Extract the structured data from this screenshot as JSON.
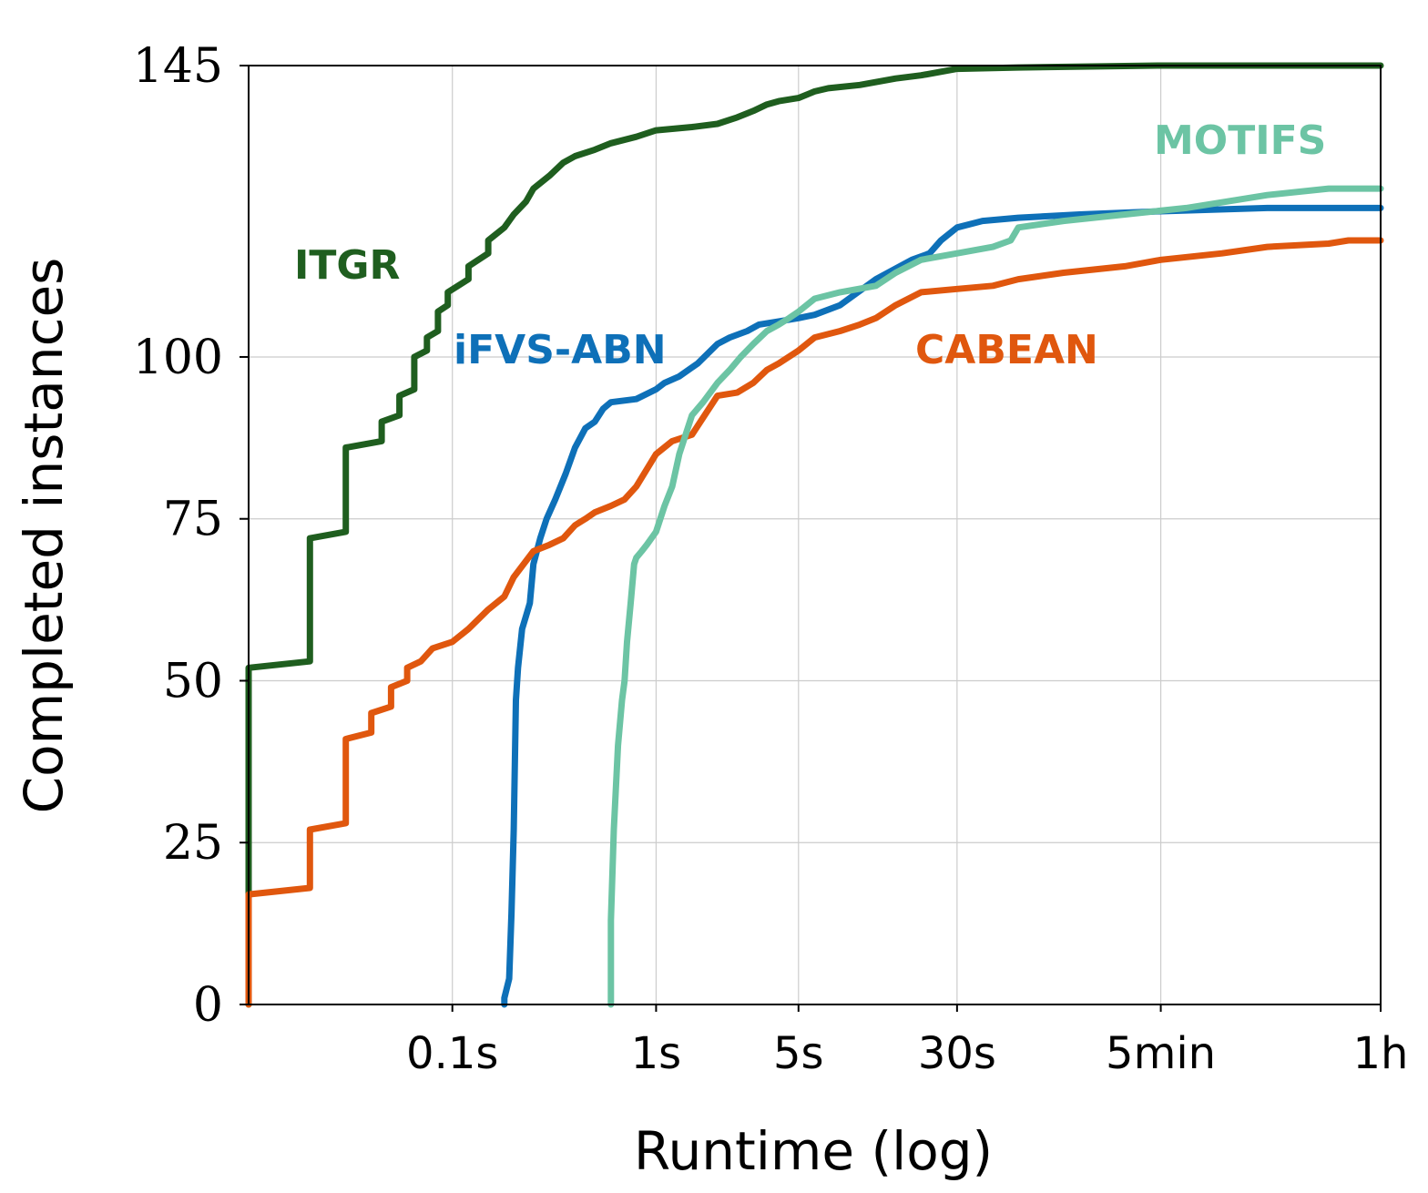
{
  "chart_data": {
    "type": "line",
    "title": "",
    "xlabel": "Runtime (log)",
    "ylabel": "Completed instances",
    "x_scale": "log",
    "xlim_seconds": [
      0.01,
      3600
    ],
    "ylim": [
      0,
      145
    ],
    "y_ticks": [
      0,
      25,
      50,
      75,
      100,
      145
    ],
    "x_ticks": [
      {
        "value": 0.1,
        "label": "0.1s"
      },
      {
        "value": 1,
        "label": "1s"
      },
      {
        "value": 5,
        "label": "5s"
      },
      {
        "value": 30,
        "label": "30s"
      },
      {
        "value": 300,
        "label": "5min"
      },
      {
        "value": 3600,
        "label": "1h"
      }
    ],
    "grid": true,
    "series": [
      {
        "name": "ITGR",
        "color": "#1f5e1f",
        "x": [
          0.01,
          0.01,
          0.02,
          0.02,
          0.03,
          0.03,
          0.045,
          0.045,
          0.055,
          0.055,
          0.065,
          0.065,
          0.075,
          0.075,
          0.085,
          0.085,
          0.095,
          0.095,
          0.12,
          0.12,
          0.15,
          0.15,
          0.18,
          0.2,
          0.23,
          0.25,
          0.3,
          0.35,
          0.4,
          0.5,
          0.6,
          0.8,
          1.0,
          1.5,
          2,
          2.5,
          3,
          3.5,
          4,
          5,
          6,
          7,
          10,
          15,
          20,
          30,
          60,
          300,
          3600
        ],
        "y": [
          0,
          52,
          53,
          72,
          73,
          86,
          87,
          90,
          91,
          94,
          95,
          100,
          101,
          103,
          104,
          107,
          108,
          110,
          112,
          114,
          116,
          118,
          120,
          122,
          124,
          126,
          128,
          130,
          131,
          132,
          133,
          134,
          135,
          135.5,
          136,
          137,
          138,
          139,
          139.5,
          140,
          141,
          141.5,
          142,
          143,
          143.5,
          144.5,
          144.7,
          145,
          145
        ]
      },
      {
        "name": "iFVS-ABN",
        "color": "#0e70b8",
        "x": [
          0.18,
          0.18,
          0.19,
          0.195,
          0.2,
          0.205,
          0.21,
          0.22,
          0.23,
          0.24,
          0.25,
          0.27,
          0.29,
          0.32,
          0.36,
          0.4,
          0.45,
          0.5,
          0.55,
          0.6,
          0.8,
          1.0,
          1.1,
          1.3,
          1.6,
          2.0,
          2.3,
          2.8,
          3.2,
          4,
          5,
          6,
          8,
          12,
          18,
          22,
          25,
          30,
          40,
          60,
          120,
          300,
          1000,
          3600
        ],
        "y": [
          0,
          1,
          4,
          14,
          27,
          47,
          52,
          58,
          60,
          62,
          68,
          72,
          75,
          78,
          82,
          86,
          89,
          90,
          92,
          93,
          93.5,
          95,
          96,
          97,
          99,
          102,
          103,
          104,
          105,
          105.5,
          106,
          106.5,
          108,
          112,
          115,
          116,
          118,
          120,
          121,
          121.5,
          122,
          122.5,
          123,
          123
        ]
      },
      {
        "name": "CABEAN",
        "color": "#e0570e",
        "x": [
          0.01,
          0.01,
          0.02,
          0.02,
          0.03,
          0.03,
          0.04,
          0.04,
          0.05,
          0.05,
          0.06,
          0.06,
          0.07,
          0.08,
          0.1,
          0.12,
          0.15,
          0.18,
          0.2,
          0.25,
          0.3,
          0.35,
          0.4,
          0.45,
          0.5,
          0.6,
          0.7,
          0.8,
          1.0,
          1.2,
          1.5,
          2.0,
          2.5,
          3,
          3.5,
          4,
          5,
          6,
          8,
          10,
          12,
          15,
          20,
          30,
          45,
          60,
          100,
          200,
          300,
          600,
          1000,
          2000,
          2500,
          3600
        ],
        "y": [
          0,
          17,
          18,
          27,
          28,
          41,
          42,
          45,
          46,
          49,
          50,
          52,
          53,
          55,
          56,
          58,
          61,
          63,
          66,
          70,
          71,
          72,
          74,
          75,
          76,
          77,
          78,
          80,
          85,
          87,
          88,
          94,
          94.5,
          96,
          98,
          99,
          101,
          103,
          104,
          105,
          106,
          108,
          110,
          110.5,
          111,
          112,
          113,
          114,
          115,
          116,
          117,
          117.5,
          118,
          118
        ]
      },
      {
        "name": "MOTIFS",
        "color": "#6cc4a4",
        "x": [
          0.6,
          0.6,
          0.62,
          0.65,
          0.68,
          0.7,
          0.72,
          0.75,
          0.78,
          0.8,
          0.85,
          0.9,
          1.0,
          1.1,
          1.2,
          1.3,
          1.5,
          1.7,
          2.0,
          2.3,
          2.6,
          3.0,
          3.5,
          4,
          4.5,
          5,
          6,
          8,
          12,
          15,
          20,
          30,
          45,
          55,
          60,
          100,
          200,
          400,
          1000,
          2000,
          3600
        ],
        "y": [
          0,
          13,
          27,
          40,
          47,
          50,
          56,
          62,
          68,
          69,
          70,
          71,
          73,
          77,
          80,
          85,
          91,
          93,
          96,
          98,
          100,
          102,
          104,
          105,
          106,
          107,
          109,
          110,
          111,
          113,
          115,
          116,
          117,
          118,
          120,
          121,
          122,
          123,
          125,
          126,
          126
        ]
      }
    ],
    "annotations": [
      {
        "text": "ITGR",
        "series": "ITGR"
      },
      {
        "text": "iFVS-ABN",
        "series": "iFVS-ABN"
      },
      {
        "text": "CABEAN",
        "series": "CABEAN"
      },
      {
        "text": "MOTIFS",
        "series": "MOTIFS"
      }
    ]
  }
}
